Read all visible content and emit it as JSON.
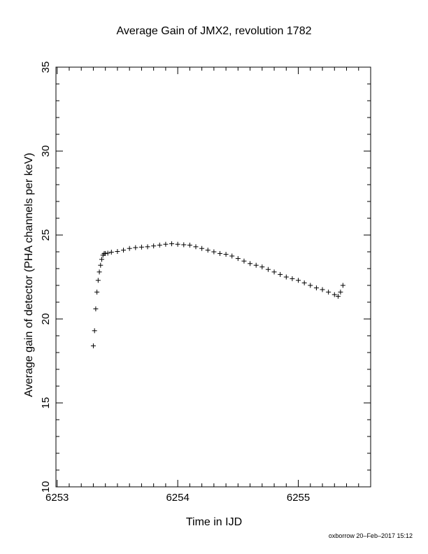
{
  "chart_data": {
    "type": "scatter",
    "title": "Average Gain of JMX2, revolution 1782",
    "xlabel": "Time in IJD",
    "ylabel": "Average gain of detector (PHA channels per keV)",
    "xlim": [
      6252.99,
      6255.6
    ],
    "ylim": [
      10,
      35
    ],
    "xticks": [
      6253,
      6254,
      6255
    ],
    "yticks": [
      10,
      15,
      20,
      25,
      30,
      35
    ],
    "marker": "plus",
    "grid": false,
    "series": [
      {
        "x": [
          6253.3,
          6253.31,
          6253.32,
          6253.33,
          6253.34,
          6253.35,
          6253.36,
          6253.37,
          6253.38,
          6253.39,
          6253.4,
          6253.42,
          6253.45,
          6253.5,
          6253.55,
          6253.6,
          6253.65,
          6253.7,
          6253.75,
          6253.8,
          6253.85,
          6253.9,
          6253.95,
          6254.0,
          6254.05,
          6254.1,
          6254.15,
          6254.2,
          6254.25,
          6254.3,
          6254.35,
          6254.4,
          6254.45,
          6254.5,
          6254.55,
          6254.6,
          6254.65,
          6254.7,
          6254.75,
          6254.8,
          6254.85,
          6254.9,
          6254.95,
          6255.0,
          6255.05,
          6255.1,
          6255.15,
          6255.2,
          6255.25,
          6255.3,
          6255.33,
          6255.35,
          6255.37
        ],
        "y": [
          18.4,
          19.3,
          20.6,
          21.6,
          22.3,
          22.8,
          23.2,
          23.55,
          23.8,
          23.9,
          23.9,
          23.92,
          23.98,
          24.02,
          24.1,
          24.2,
          24.25,
          24.28,
          24.3,
          24.35,
          24.4,
          24.45,
          24.48,
          24.45,
          24.42,
          24.4,
          24.3,
          24.2,
          24.1,
          24.0,
          23.9,
          23.85,
          23.75,
          23.6,
          23.45,
          23.3,
          23.2,
          23.1,
          22.95,
          22.8,
          22.65,
          22.5,
          22.4,
          22.3,
          22.15,
          22.0,
          21.85,
          21.75,
          21.6,
          21.45,
          21.35,
          21.6,
          22.0
        ]
      }
    ]
  },
  "footer": "oxborrow 20–Feb–2017 15:12"
}
